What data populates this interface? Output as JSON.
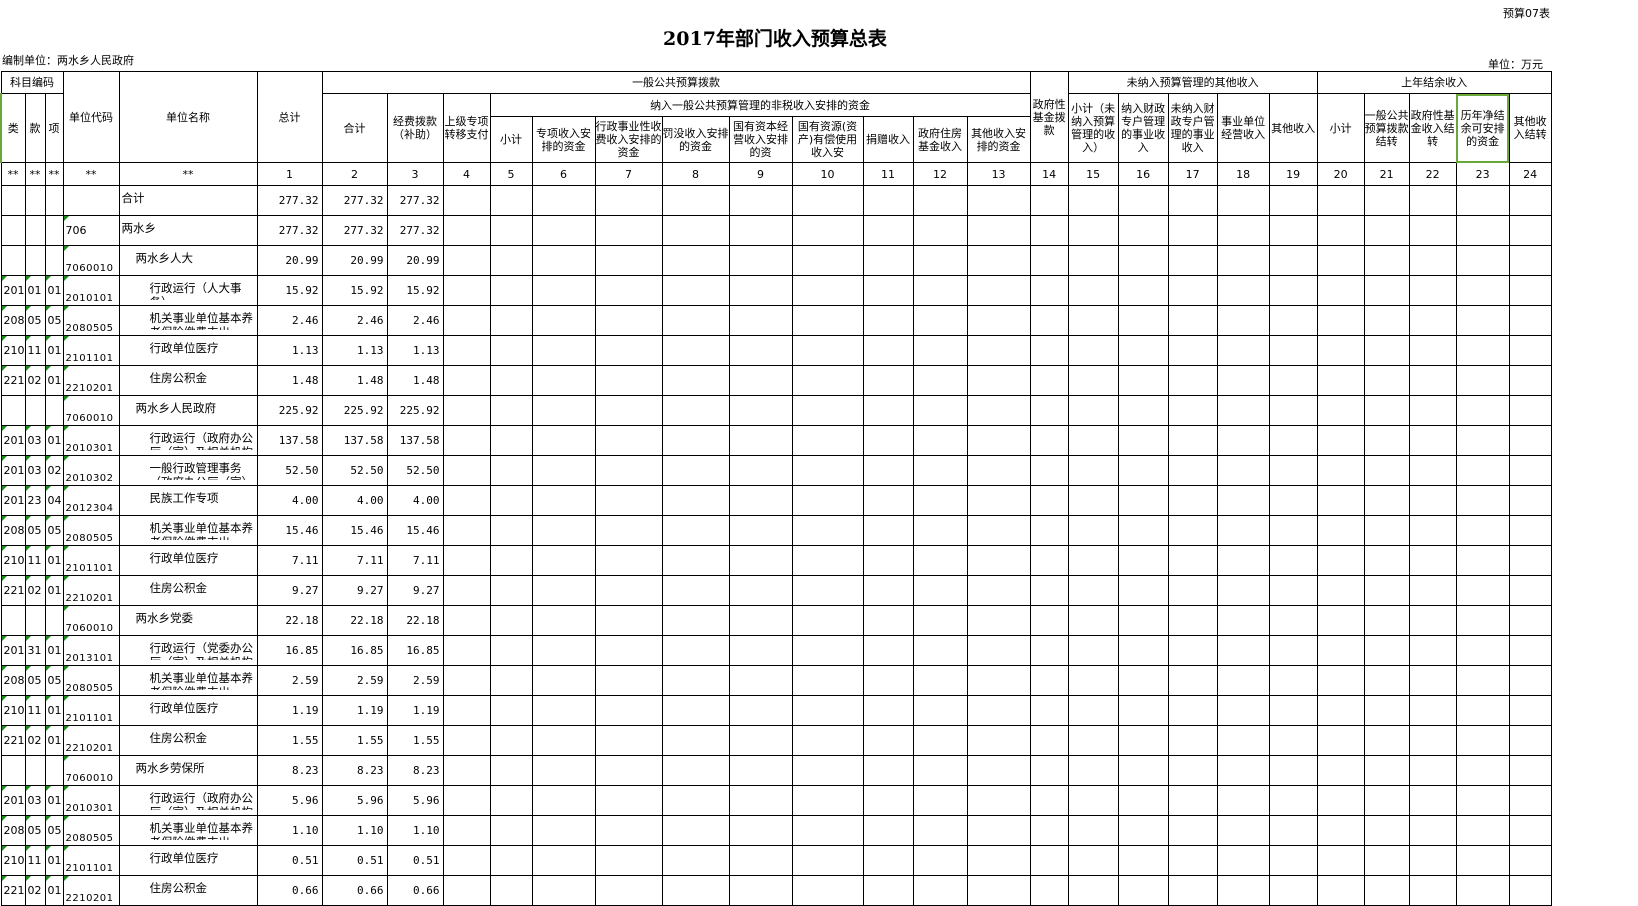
{
  "title": "2017年部门收入预算总表",
  "form_no": "预算07表",
  "org": "编制单位：两水乡人民政府",
  "unit": "单位：万元",
  "header": {
    "subject_code": "科目编码",
    "lei": "类",
    "kuan": "款",
    "xiang": "项",
    "unit_code": "单位代码",
    "unit_name": "单位名称",
    "total": "总计",
    "general": "一般公共预算拨款",
    "g_sum": "合计",
    "g_fund": "经费拨款（补助）",
    "g_transfer": "上级专项转移支付",
    "nontax": "纳入一般公共预算管理的非税收入安排的资金",
    "nt": [
      "小计",
      "专项收入安排的资金",
      "行政事业性收费收入安排的资金",
      "罚没收入安排的资金",
      "国有资本经营收入安排的资",
      "国有资源(资产)有偿使用收入安",
      "捐赠收入",
      "政府住房基金收入",
      "其他收入安排的资金"
    ],
    "gov_fund": "政府性基金拨款",
    "other": "未纳入预算管理的其他收入",
    "ot": [
      "小计（未纳入预算管理的收入）",
      "纳入财政专户管理的事业收入",
      "未纳入财政专户管理的事业收入",
      "事业单位经营收入",
      "其他收入"
    ],
    "carry": "上年结余收入",
    "ct": [
      "小计",
      "一般公共预算拨款结转",
      "政府性基金收入结转",
      "历年净结余可安排的资金",
      "其他收入结转"
    ],
    "stars": [
      "**",
      "**",
      "**",
      "**",
      "**"
    ],
    "nums": [
      "1",
      "2",
      "3",
      "4",
      "5",
      "6",
      "7",
      "8",
      "9",
      "10",
      "11",
      "12",
      "13",
      "14",
      "15",
      "16",
      "17",
      "18",
      "19",
      "20",
      "21",
      "22",
      "23",
      "24"
    ]
  },
  "rows": [
    {
      "lei": "",
      "kuan": "",
      "xiang": "",
      "code": "",
      "name": "合计",
      "level": 0,
      "v": [
        "277.32",
        "277.32",
        "277.32"
      ]
    },
    {
      "lei": "",
      "kuan": "",
      "xiang": "",
      "code": "706",
      "name": "两水乡",
      "level": 0,
      "v": [
        "277.32",
        "277.32",
        "277.32"
      ]
    },
    {
      "lei": "",
      "kuan": "",
      "xiang": "",
      "code": "7060010",
      "name": "两水乡人大",
      "level": 1,
      "v": [
        "20.99",
        "20.99",
        "20.99"
      ]
    },
    {
      "lei": "201",
      "kuan": "01",
      "xiang": "01",
      "code": "2010101",
      "name": "行政运行（人大事务）",
      "level": 2,
      "v": [
        "15.92",
        "15.92",
        "15.92"
      ]
    },
    {
      "lei": "208",
      "kuan": "05",
      "xiang": "05",
      "code": "2080505",
      "name": "机关事业单位基本养老保险缴费支出",
      "level": 2,
      "v": [
        "2.46",
        "2.46",
        "2.46"
      ]
    },
    {
      "lei": "210",
      "kuan": "11",
      "xiang": "01",
      "code": "2101101",
      "name": "行政单位医疗",
      "level": 2,
      "v": [
        "1.13",
        "1.13",
        "1.13"
      ]
    },
    {
      "lei": "221",
      "kuan": "02",
      "xiang": "01",
      "code": "2210201",
      "name": "住房公积金",
      "level": 2,
      "v": [
        "1.48",
        "1.48",
        "1.48"
      ]
    },
    {
      "lei": "",
      "kuan": "",
      "xiang": "",
      "code": "7060010",
      "name": "两水乡人民政府",
      "level": 1,
      "v": [
        "225.92",
        "225.92",
        "225.92"
      ]
    },
    {
      "lei": "201",
      "kuan": "03",
      "xiang": "01",
      "code": "2010301",
      "name": "行政运行（政府办公厅（室）及相关机构",
      "level": 2,
      "v": [
        "137.58",
        "137.58",
        "137.58"
      ]
    },
    {
      "lei": "201",
      "kuan": "03",
      "xiang": "02",
      "code": "2010302",
      "name": "一般行政管理事务（政府办公厅（室）及",
      "level": 2,
      "v": [
        "52.50",
        "52.50",
        "52.50"
      ]
    },
    {
      "lei": "201",
      "kuan": "23",
      "xiang": "04",
      "code": "2012304",
      "name": "民族工作专项",
      "level": 2,
      "v": [
        "4.00",
        "4.00",
        "4.00"
      ]
    },
    {
      "lei": "208",
      "kuan": "05",
      "xiang": "05",
      "code": "2080505",
      "name": "机关事业单位基本养老保险缴费支出",
      "level": 2,
      "v": [
        "15.46",
        "15.46",
        "15.46"
      ]
    },
    {
      "lei": "210",
      "kuan": "11",
      "xiang": "01",
      "code": "2101101",
      "name": "行政单位医疗",
      "level": 2,
      "v": [
        "7.11",
        "7.11",
        "7.11"
      ]
    },
    {
      "lei": "221",
      "kuan": "02",
      "xiang": "01",
      "code": "2210201",
      "name": "住房公积金",
      "level": 2,
      "v": [
        "9.27",
        "9.27",
        "9.27"
      ]
    },
    {
      "lei": "",
      "kuan": "",
      "xiang": "",
      "code": "7060010",
      "name": "两水乡党委",
      "level": 1,
      "v": [
        "22.18",
        "22.18",
        "22.18"
      ]
    },
    {
      "lei": "201",
      "kuan": "31",
      "xiang": "01",
      "code": "2013101",
      "name": "行政运行（党委办公厅（室）及相关机构",
      "level": 2,
      "v": [
        "16.85",
        "16.85",
        "16.85"
      ]
    },
    {
      "lei": "208",
      "kuan": "05",
      "xiang": "05",
      "code": "2080505",
      "name": "机关事业单位基本养老保险缴费支出",
      "level": 2,
      "v": [
        "2.59",
        "2.59",
        "2.59"
      ]
    },
    {
      "lei": "210",
      "kuan": "11",
      "xiang": "01",
      "code": "2101101",
      "name": "行政单位医疗",
      "level": 2,
      "v": [
        "1.19",
        "1.19",
        "1.19"
      ]
    },
    {
      "lei": "221",
      "kuan": "02",
      "xiang": "01",
      "code": "2210201",
      "name": "住房公积金",
      "level": 2,
      "v": [
        "1.55",
        "1.55",
        "1.55"
      ]
    },
    {
      "lei": "",
      "kuan": "",
      "xiang": "",
      "code": "7060010",
      "name": "两水乡劳保所",
      "level": 1,
      "v": [
        "8.23",
        "8.23",
        "8.23"
      ]
    },
    {
      "lei": "201",
      "kuan": "03",
      "xiang": "01",
      "code": "2010301",
      "name": "行政运行（政府办公厅（室）及相关机构",
      "level": 2,
      "v": [
        "5.96",
        "5.96",
        "5.96"
      ]
    },
    {
      "lei": "208",
      "kuan": "05",
      "xiang": "05",
      "code": "2080505",
      "name": "机关事业单位基本养老保险缴费支出",
      "level": 2,
      "v": [
        "1.10",
        "1.10",
        "1.10"
      ]
    },
    {
      "lei": "210",
      "kuan": "11",
      "xiang": "01",
      "code": "2101101",
      "name": "行政单位医疗",
      "level": 2,
      "v": [
        "0.51",
        "0.51",
        "0.51"
      ]
    },
    {
      "lei": "221",
      "kuan": "02",
      "xiang": "01",
      "code": "2210201",
      "name": "住房公积金",
      "level": 2,
      "v": [
        "0.66",
        "0.66",
        "0.66"
      ]
    }
  ]
}
